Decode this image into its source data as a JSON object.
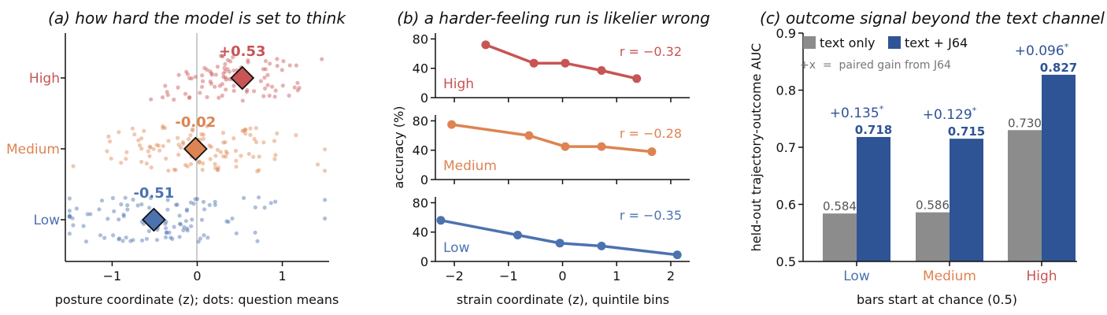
{
  "colors": {
    "high": "#c85454",
    "medium": "#dd8452",
    "low": "#4c72b0",
    "text_only": "#8c8c8c",
    "text_j64": "#2e5496",
    "refline": "#cccccc"
  },
  "chart_data": [
    {
      "type": "scatter",
      "title": "(a) how hard the model is set to think",
      "xlabel": "posture coordinate (z); dots: question means",
      "ylabel": "",
      "xlim": [
        -1.55,
        1.55
      ],
      "xticks": [
        -1,
        0,
        1
      ],
      "xtick_labels": [
        "−1",
        "0",
        "1"
      ],
      "categories": [
        "High",
        "Medium",
        "Low"
      ],
      "reference_line_x": 0,
      "series": [
        {
          "name": "High",
          "mean": 0.53,
          "mean_label": "+0.53",
          "color": "#c85454",
          "spread": 0.5,
          "center": 0.45,
          "n": 95
        },
        {
          "name": "Medium",
          "mean": -0.02,
          "mean_label": "-0.02",
          "color": "#dd8452",
          "spread": 0.6,
          "center": 0.0,
          "n": 110
        },
        {
          "name": "Low",
          "mean": -0.51,
          "mean_label": "-0.51",
          "color": "#4c72b0",
          "spread": 0.62,
          "center": -0.35,
          "n": 105
        }
      ]
    },
    {
      "type": "line",
      "title": "(b) a harder-feeling run is likelier wrong",
      "xlabel": "strain coordinate (z), quintile bins",
      "ylabel": "accuracy (%)",
      "xlim": [
        -2.35,
        2.35
      ],
      "ylim": [
        0,
        88
      ],
      "xticks": [
        -2,
        -1,
        0,
        1,
        2
      ],
      "xtick_labels": [
        "−2",
        "−1",
        "0",
        "1",
        "2"
      ],
      "yticks": [
        0,
        40,
        80
      ],
      "series": [
        {
          "name": "High",
          "color": "#c85454",
          "r_label": "r = −0.32",
          "x": [
            -1.42,
            -0.53,
            0.05,
            0.72,
            1.37
          ],
          "y": [
            72,
            47,
            47,
            37,
            26
          ]
        },
        {
          "name": "Medium",
          "color": "#dd8452",
          "r_label": "r = −0.28",
          "x": [
            -2.05,
            -0.62,
            0.05,
            0.72,
            1.65
          ],
          "y": [
            75,
            60,
            45,
            45,
            38
          ]
        },
        {
          "name": "Low",
          "color": "#4c72b0",
          "r_label": "r = −0.35",
          "x": [
            -2.25,
            -0.83,
            -0.05,
            0.72,
            2.12
          ],
          "y": [
            56,
            36,
            25,
            21,
            9
          ]
        }
      ]
    },
    {
      "type": "bar",
      "title": "(c) outcome signal beyond the text channel",
      "xlabel": "bars start at chance (0.5)",
      "ylabel": "held-out trajectory-outcome AUC",
      "ylim": [
        0.5,
        0.9
      ],
      "yticks": [
        0.5,
        0.6,
        0.7,
        0.8,
        0.9
      ],
      "categories": [
        "Low",
        "Medium",
        "High"
      ],
      "category_colors": [
        "#4c72b0",
        "#dd8452",
        "#c85454"
      ],
      "series": [
        {
          "name": "text only",
          "color": "#8c8c8c",
          "values": [
            0.584,
            0.586,
            0.73
          ],
          "labels": [
            "0.584",
            "0.586",
            "0.730"
          ]
        },
        {
          "name": "text + J64",
          "color": "#2e5496",
          "values": [
            0.718,
            0.715,
            0.827
          ],
          "labels": [
            "0.718",
            "0.715",
            "0.827"
          ]
        }
      ],
      "gains": [
        "+0.135",
        "+0.129",
        "+0.096"
      ],
      "gain_mark": "*",
      "legend_note": "+x  =  paired gain from J64",
      "legend_position": "top-left"
    }
  ]
}
